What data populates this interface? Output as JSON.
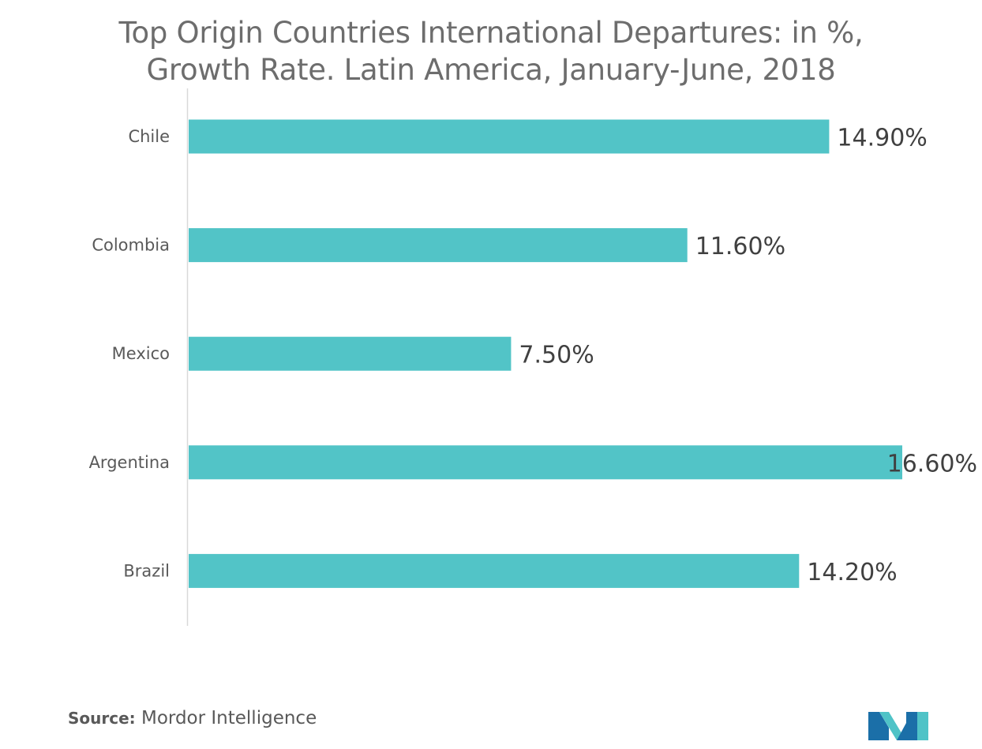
{
  "title": {
    "line1": "Top Origin Countries International Departures: in %,",
    "line2": "Growth Rate. Latin America, January-June, 2018"
  },
  "footer": {
    "source_label": "Source:",
    "source_value": "Mordor Intelligence"
  },
  "logo": {
    "icon": "mordor-intelligence-logo-icon",
    "colors": [
      "#1b6fa8",
      "#4fc3c7"
    ]
  },
  "colors": {
    "bar": "#52c4c7",
    "axis": "#d9d9d9"
  },
  "chart_data": {
    "type": "bar",
    "orientation": "horizontal",
    "title": "Top Origin Countries International Departures: in %, Growth Rate. Latin America, January-June, 2018",
    "categories": [
      "Chile",
      "Colombia",
      "Mexico",
      "Argentina",
      "Brazil"
    ],
    "values": [
      14.9,
      11.6,
      7.5,
      16.6,
      14.2
    ],
    "value_labels": [
      "14.90%",
      "11.60%",
      "7.50%",
      "16.60%",
      "14.20%"
    ],
    "xlim": [
      0,
      16.6
    ],
    "grid": false,
    "legend": "none"
  }
}
